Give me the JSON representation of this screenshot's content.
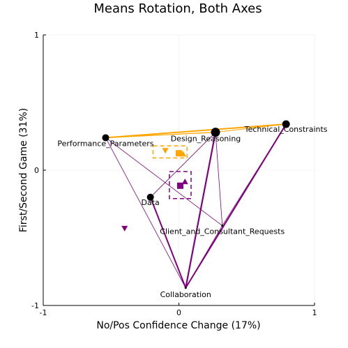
{
  "chart_data": {
    "type": "scatter",
    "title": "Means Rotation, Both Axes",
    "xlabel": "No/Pos Confidence Change (17%)",
    "ylabel": "First/Second Game (31%)",
    "xlim": [
      -1,
      1
    ],
    "ylim": [
      -1,
      1
    ],
    "xticks": [
      {
        "value": -1,
        "label": "-1"
      },
      {
        "value": 0,
        "label": "0"
      },
      {
        "value": 1,
        "label": "1"
      }
    ],
    "yticks": [
      {
        "value": -1,
        "label": "-1"
      },
      {
        "value": 0,
        "label": "0"
      },
      {
        "value": 1,
        "label": "1"
      }
    ],
    "grid": true,
    "colors": {
      "orange": "#FFA500",
      "purple": "#800080",
      "node": "#000000",
      "grid": "#ebebeb",
      "axis": "#000000"
    },
    "nodes": [
      {
        "id": "performance",
        "label": "Performance_Parameters",
        "x": -0.54,
        "y": 0.24,
        "size": 5
      },
      {
        "id": "design",
        "label": "Design_Reasoning",
        "x": 0.27,
        "y": 0.28,
        "size": 6.5
      },
      {
        "id": "technical",
        "label": "Technical_Constraints",
        "x": 0.79,
        "y": 0.34,
        "size": 5.5
      },
      {
        "id": "data",
        "label": "Data",
        "x": -0.21,
        "y": -0.2,
        "size": 5
      },
      {
        "id": "client",
        "label": "Client_and_Consultant_Requests",
        "x": 0.32,
        "y": -0.41,
        "size": 1.5
      },
      {
        "id": "collab",
        "label": "Collaboration",
        "x": 0.05,
        "y": -0.87,
        "size": 1.5
      }
    ],
    "edges": [
      {
        "color": "orange",
        "from": "performance",
        "to": "technical",
        "width": 2.0
      },
      {
        "color": "orange",
        "from": "performance",
        "to": "design",
        "width": 1.3
      },
      {
        "color": "orange",
        "from": "design",
        "to": "technical",
        "width": 1.0
      },
      {
        "color": "orange",
        "from": "data",
        "to": "design",
        "width": 0.6
      },
      {
        "color": "purple",
        "from": "performance",
        "to": "collab",
        "width": 0.8
      },
      {
        "color": "purple",
        "from": "performance",
        "to": "client",
        "width": 0.8
      },
      {
        "color": "purple",
        "from": "data",
        "to": "collab",
        "width": 2.0
      },
      {
        "color": "purple",
        "from": "data",
        "to": "design",
        "width": 0.8
      },
      {
        "color": "purple",
        "from": "design",
        "to": "collab",
        "width": 2.2
      },
      {
        "color": "purple",
        "from": "design",
        "to": "client",
        "width": 0.8
      },
      {
        "color": "purple",
        "from": "technical",
        "to": "collab",
        "width": 2.0
      },
      {
        "color": "purple",
        "from": "technical",
        "to": "client",
        "width": 0.8
      },
      {
        "color": "purple",
        "from": "client",
        "to": "collab",
        "width": 0.8
      }
    ],
    "means": [
      {
        "color": "orange",
        "shape": "square",
        "x": 0.0,
        "y": 0.125
      },
      {
        "color": "orange",
        "shape": "triangle-up",
        "x": 0.03,
        "y": 0.12
      },
      {
        "color": "orange",
        "shape": "triangle-down",
        "x": -0.1,
        "y": 0.145
      },
      {
        "color": "purple",
        "shape": "square",
        "x": 0.01,
        "y": -0.115
      },
      {
        "color": "purple",
        "shape": "triangle-up",
        "x": 0.045,
        "y": -0.085
      },
      {
        "color": "purple",
        "shape": "triangle-down",
        "x": -0.4,
        "y": -0.43
      }
    ],
    "confidence_boxes": [
      {
        "color": "orange",
        "x": [
          -0.19,
          0.06
        ],
        "y": [
          0.09,
          0.18
        ]
      },
      {
        "color": "purple",
        "x": [
          -0.07,
          0.09
        ],
        "y": [
          -0.21,
          -0.01
        ]
      }
    ]
  }
}
